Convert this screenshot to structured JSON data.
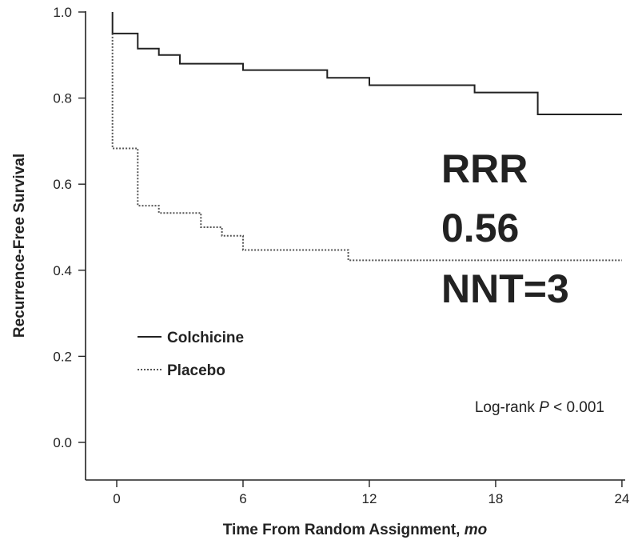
{
  "chart_data": {
    "type": "line",
    "title": "",
    "xlabel": "Time From Random Assignment,",
    "xlabel_unit": "mo",
    "ylabel": "Recurrence-Free Survival",
    "xlim": [
      -1,
      24.5
    ],
    "ylim": [
      -0.05,
      1.0
    ],
    "xticks": [
      0,
      6,
      12,
      18,
      24
    ],
    "yticks": [
      0.0,
      0.2,
      0.4,
      0.6,
      0.8,
      1.0
    ],
    "xtick_labels": [
      "0",
      "6",
      "12",
      "18",
      "24"
    ],
    "ytick_labels": [
      "0.0",
      "0.2",
      "0.4",
      "0.6",
      "0.8",
      "1.0"
    ],
    "grid": false,
    "legend_position": "lower-left",
    "series": [
      {
        "name": "Colchicine",
        "style": "solid",
        "color": "#222222",
        "x": [
          -0.2,
          -0.2,
          1.0,
          1.0,
          2.0,
          2.0,
          3.0,
          3.0,
          6.0,
          6.0,
          10.0,
          10.0,
          12.0,
          12.0,
          17.0,
          17.0,
          20.0,
          20.0,
          24.0
        ],
        "y": [
          1.0,
          0.95,
          0.95,
          0.915,
          0.915,
          0.9,
          0.9,
          0.88,
          0.88,
          0.865,
          0.865,
          0.847,
          0.847,
          0.83,
          0.83,
          0.813,
          0.813,
          0.762,
          0.762
        ]
      },
      {
        "name": "Placebo",
        "style": "dotted",
        "color": "#555555",
        "x": [
          -0.2,
          -0.2,
          1.0,
          1.0,
          2.0,
          2.0,
          4.0,
          4.0,
          5.0,
          5.0,
          6.0,
          6.0,
          11.0,
          11.0,
          24.0
        ],
        "y": [
          0.95,
          0.683,
          0.683,
          0.55,
          0.55,
          0.533,
          0.533,
          0.5,
          0.5,
          0.48,
          0.48,
          0.447,
          0.447,
          0.423,
          0.423
        ]
      }
    ],
    "annotations": {
      "rrr_label": "RRR",
      "rrr_value": "0.56",
      "nnt": "NNT=3",
      "logrank_prefix": "Log-rank",
      "logrank_p": "P",
      "logrank_suffix": "< 0.001"
    }
  }
}
